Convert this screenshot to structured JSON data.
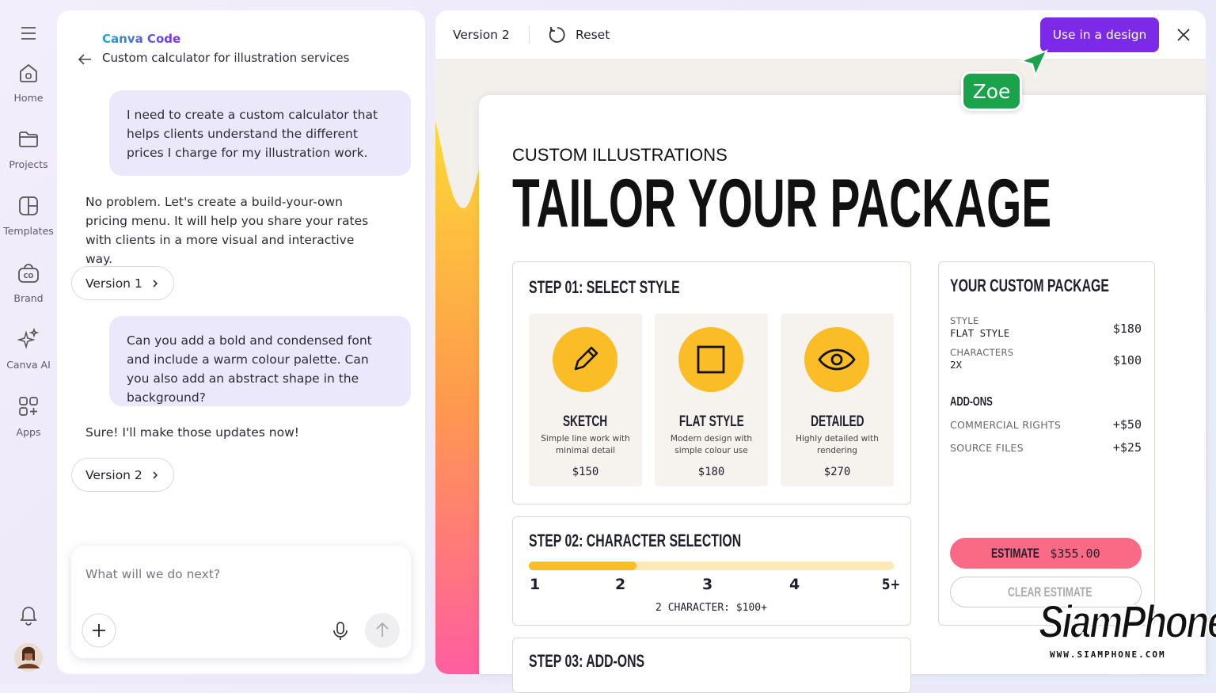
{
  "sidebar": {
    "items": [
      "Home",
      "Projects",
      "Templates",
      "Brand",
      "Canva AI",
      "Apps"
    ]
  },
  "chat": {
    "brand": "Canva Code",
    "title": "Custom calculator for illustration services",
    "messages": [
      {
        "role": "user",
        "text": "I need to create a custom calculator that helps clients understand the different prices I charge for my illustration work."
      },
      {
        "role": "assistant",
        "text": "No problem. Let's create a build-your-own pricing menu. It will help you share your rates with clients in a more visual and interactive way.",
        "version": "Version 1"
      },
      {
        "role": "user",
        "text": "Can you add a bold and condensed font and include a warm colour palette. Can you also add an abstract shape in the background?"
      },
      {
        "role": "assistant",
        "text": "Sure! I'll make those updates now!",
        "version": "Version 2"
      }
    ],
    "input_placeholder": "What will we do next?"
  },
  "toolbar": {
    "version": "Version 2",
    "reset": "Reset",
    "use_button": "Use in a design",
    "cursor_label": "Zoe"
  },
  "preview": {
    "eyebrow": "CUSTOM ILLUSTRATIONS",
    "heading": "TAILOR YOUR PACKAGE",
    "step1": {
      "title": "STEP 01: SELECT STYLE",
      "options": [
        {
          "name": "SKETCH",
          "description": "Simple line work with minimal detail",
          "price": "$150"
        },
        {
          "name": "FLAT STYLE",
          "description": "Modern design with simple colour use",
          "price": "$180"
        },
        {
          "name": "DETAILED",
          "description": "Highly detailed with rendering",
          "price": "$270"
        }
      ]
    },
    "step2": {
      "title": "STEP 02: CHARACTER SELECTION",
      "scale": [
        "1",
        "2",
        "3",
        "4",
        "5+"
      ],
      "summary": "2 CHARACTER: $100+"
    },
    "step3": {
      "title": "STEP 03: ADD-ONS"
    },
    "package": {
      "title": "YOUR CUSTOM PACKAGE",
      "items": [
        {
          "label": "STYLE",
          "detail": "FLAT STYLE",
          "price": "$180"
        },
        {
          "label": "CHARACTERS",
          "detail": "2X",
          "price": "$100"
        }
      ],
      "addons_title": "ADD-ONS",
      "addons": [
        {
          "label": "COMMERCIAL RIGHTS",
          "price": "+$50"
        },
        {
          "label": "SOURCE FILES",
          "price": "+$25"
        }
      ],
      "estimate_label": "ESTIMATE",
      "estimate_value": "$355.00",
      "clear": "CLEAR ESTIMATE"
    }
  },
  "watermark": {
    "brand": "SiamPhone",
    "url": "WWW.SIAMPHONE.COM"
  }
}
